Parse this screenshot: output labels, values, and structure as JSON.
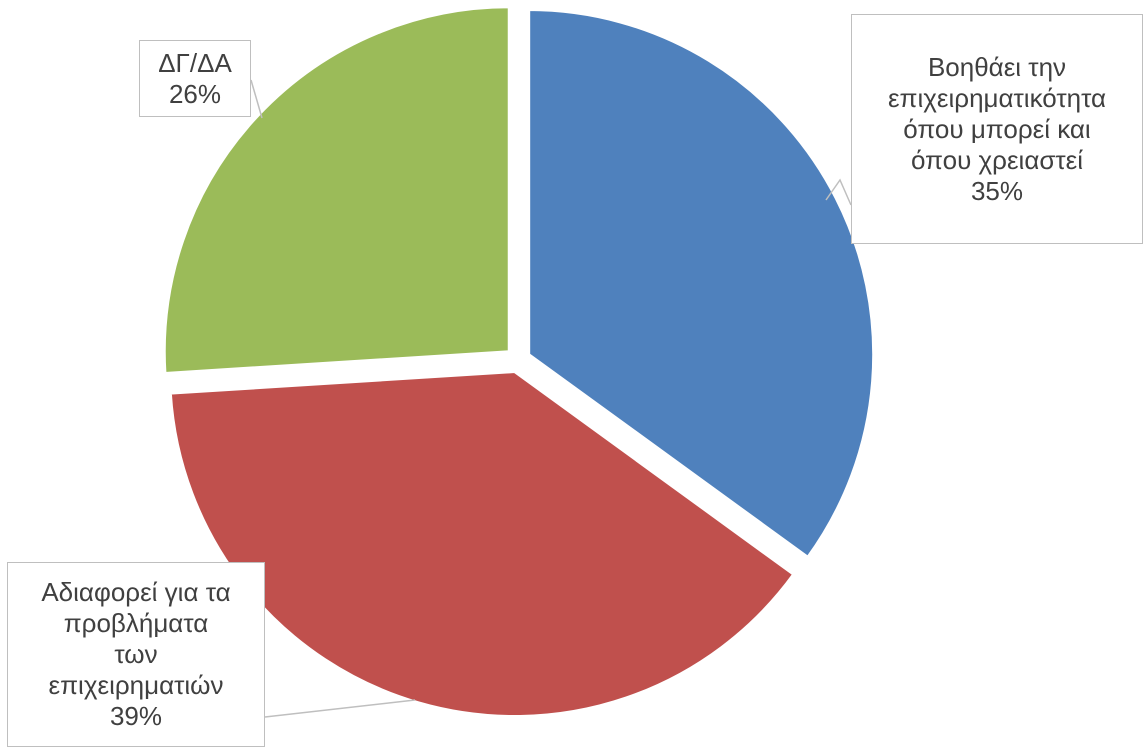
{
  "chart_data": {
    "type": "pie",
    "slices": [
      {
        "name": "Βοηθάει την επιχειρηματικότητα όπου μπορεί και όπου χρειαστεί",
        "value": 35,
        "color": "#4F81BD",
        "label_lines": [
          "Βοηθάει την",
          "επιχειρηματικότητα",
          "όπου μπορεί και",
          "όπου χρειαστεί"
        ],
        "percent_label": "35%"
      },
      {
        "name": "Αδιαφορεί για τα προβλήματα των επιχειρηματιών",
        "value": 39,
        "color": "#C0504D",
        "label_lines": [
          "Αδιαφορεί για τα",
          "προβλήματα",
          "των",
          "επιχειρηματιών"
        ],
        "percent_label": "39%"
      },
      {
        "name": "ΔΓ/ΔΑ",
        "value": 26,
        "color": "#9BBB59",
        "label_lines": [
          "ΔΓ/ΔΑ"
        ],
        "percent_label": "26%"
      }
    ],
    "exploded": true,
    "legend": "none"
  }
}
